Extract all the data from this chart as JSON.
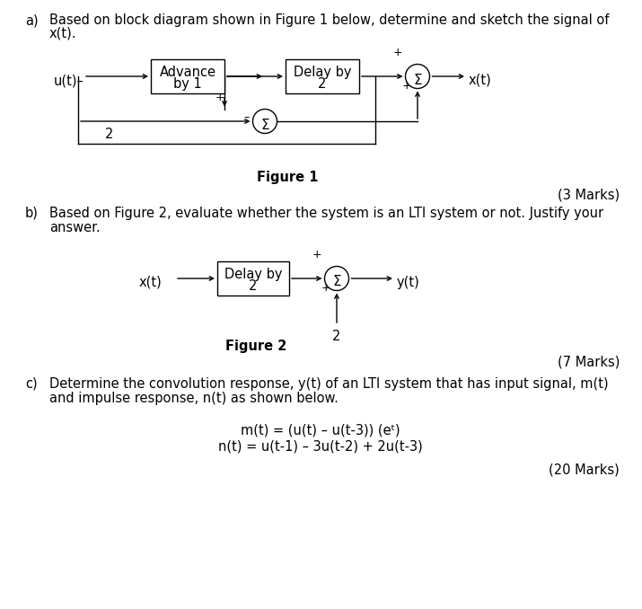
{
  "background_color": "#ffffff",
  "fig1_topology": {
    "ut_label": "u(t)–",
    "adv_box": "Advance\nby 1",
    "delay_box": "Delay by\n2",
    "sigma": "Σ",
    "xt_label": "x(t)",
    "fig_label": "Figure 1",
    "marks": "(3 Marks)",
    "gain_label": "2"
  },
  "fig2_topology": {
    "xt_label": "x(t)",
    "delay_box": "Delay by\n2",
    "sigma": "Σ",
    "yt_label": "y(t)",
    "fig_label": "Figure 2",
    "marks": "(7 Marks)",
    "gain_label": "2"
  },
  "part_a": {
    "label": "a)",
    "line1": "Based on block diagram shown in Figure 1 below, determine and sketch the signal of",
    "line2": "x(t)."
  },
  "part_b": {
    "label": "b)",
    "line1": "Based on Figure 2, evaluate whether the system is an LTI system or not. Justify your",
    "line2": "answer."
  },
  "part_c": {
    "label": "c)",
    "line1": "Determine the convolution response, y(t) of an LTI system that has input signal, m(t)",
    "line2": "and impulse response, n(t) as shown below.",
    "eq1": "m(t) = (u(t) – u(t-3)) (eᵗ)",
    "eq2": "n(t) = u(t-1) – 3u(t-2) + 2u(t-3)",
    "marks": "(20 Marks)"
  },
  "font_size": 10.5
}
